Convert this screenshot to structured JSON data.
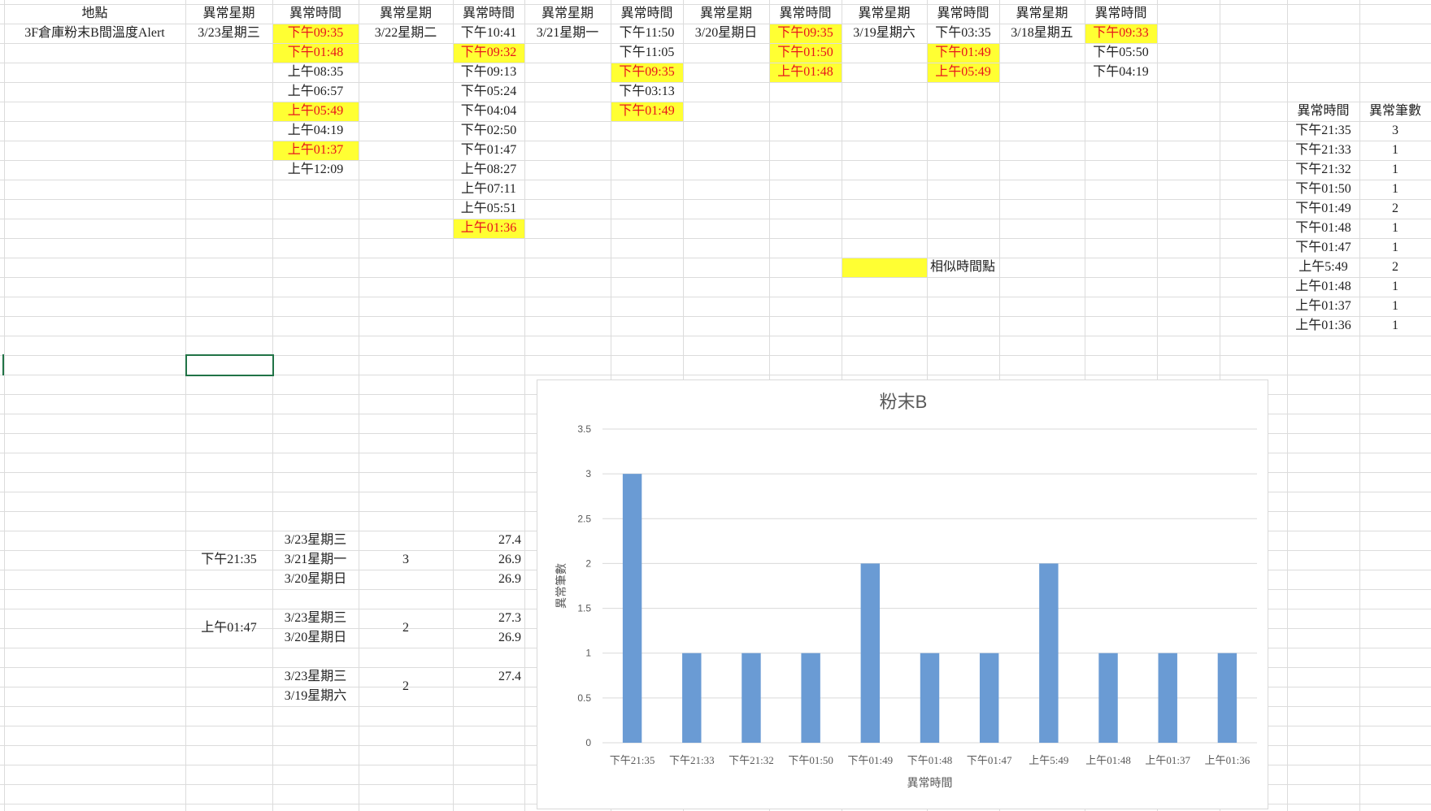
{
  "sheet": {
    "headers": {
      "location": "地點",
      "weekday": "異常星期",
      "time": "異常時間"
    },
    "location_value": "3F倉庫粉末B間溫度Alert",
    "day_groups": [
      {
        "date": "3/23星期三",
        "times": [
          "下午09:35",
          "下午01:48",
          "上午08:35",
          "上午06:57",
          "上午05:49",
          "上午04:19",
          "上午01:37",
          "上午12:09"
        ]
      },
      {
        "date": "3/22星期二",
        "times": [
          "下午10:41",
          "下午09:32",
          "下午09:13",
          "下午05:24",
          "下午04:04",
          "下午02:50",
          "下午01:47",
          "上午08:27",
          "上午07:11",
          "上午05:51",
          "上午01:36"
        ]
      },
      {
        "date": "3/21星期一",
        "times": [
          "下午11:50",
          "下午11:05",
          "下午09:35",
          "下午03:13",
          "下午01:49"
        ]
      },
      {
        "date": "3/20星期日",
        "times": [
          "下午09:35",
          "下午01:50",
          "上午01:48"
        ]
      },
      {
        "date": "3/19星期六",
        "times": [
          "下午03:35",
          "下午01:49",
          "上午05:49"
        ]
      },
      {
        "date": "3/18星期五",
        "times": [
          "下午09:33",
          "下午05:50",
          "下午04:19"
        ]
      }
    ],
    "legend_label": "相似時間點",
    "highlight_color": "#ffff33",
    "highlight_text_color": "#e8141c",
    "summary": {
      "header_time": "異常時間",
      "header_count": "異常筆數",
      "rows": [
        {
          "time": "下午21:35",
          "count": "3"
        },
        {
          "time": "下午21:33",
          "count": "1"
        },
        {
          "time": "下午21:32",
          "count": "1"
        },
        {
          "time": "下午01:50",
          "count": "1"
        },
        {
          "time": "下午01:49",
          "count": "2"
        },
        {
          "time": "下午01:48",
          "count": "1"
        },
        {
          "time": "下午01:47",
          "count": "1"
        },
        {
          "time": "上午5:49",
          "count": "2"
        },
        {
          "time": "上午01:48",
          "count": "1"
        },
        {
          "time": "上午01:37",
          "count": "1"
        },
        {
          "time": "上午01:36",
          "count": "1"
        }
      ]
    },
    "detail_groups": [
      {
        "time": "下午21:35",
        "count": "3",
        "rows": [
          {
            "date": "3/23星期三",
            "temp": "27.4"
          },
          {
            "date": "3/21星期一",
            "temp": "26.9"
          },
          {
            "date": "3/20星期日",
            "temp": "26.9"
          }
        ]
      },
      {
        "time": "上午01:47",
        "count": "2",
        "rows": [
          {
            "date": "3/23星期三",
            "temp": "27.3"
          },
          {
            "date": "3/20星期日",
            "temp": "26.9"
          }
        ]
      },
      {
        "time": "",
        "count": "2",
        "rows": [
          {
            "date": "3/23星期三",
            "temp": "27.4"
          },
          {
            "date": "3/19星期六",
            "temp": ""
          }
        ]
      }
    ]
  },
  "chart_data": {
    "type": "bar",
    "title": "粉末B",
    "xlabel": "異常時間",
    "ylabel": "異常筆數",
    "categories": [
      "下午21:35",
      "下午21:33",
      "下午21:32",
      "下午01:50",
      "下午01:49",
      "下午01:48",
      "下午01:47",
      "上午5:49",
      "上午01:48",
      "上午01:37",
      "上午01:36"
    ],
    "values": [
      3,
      1,
      1,
      1,
      2,
      1,
      1,
      2,
      1,
      1,
      1
    ],
    "ylim": [
      0,
      3.5
    ],
    "yticks": [
      "0",
      "0.5",
      "1",
      "1.5",
      "2",
      "2.5",
      "3",
      "3.5"
    ],
    "grid": true,
    "bar_color": "#6a9bd4",
    "gridline_color": "#d9d9d9"
  }
}
